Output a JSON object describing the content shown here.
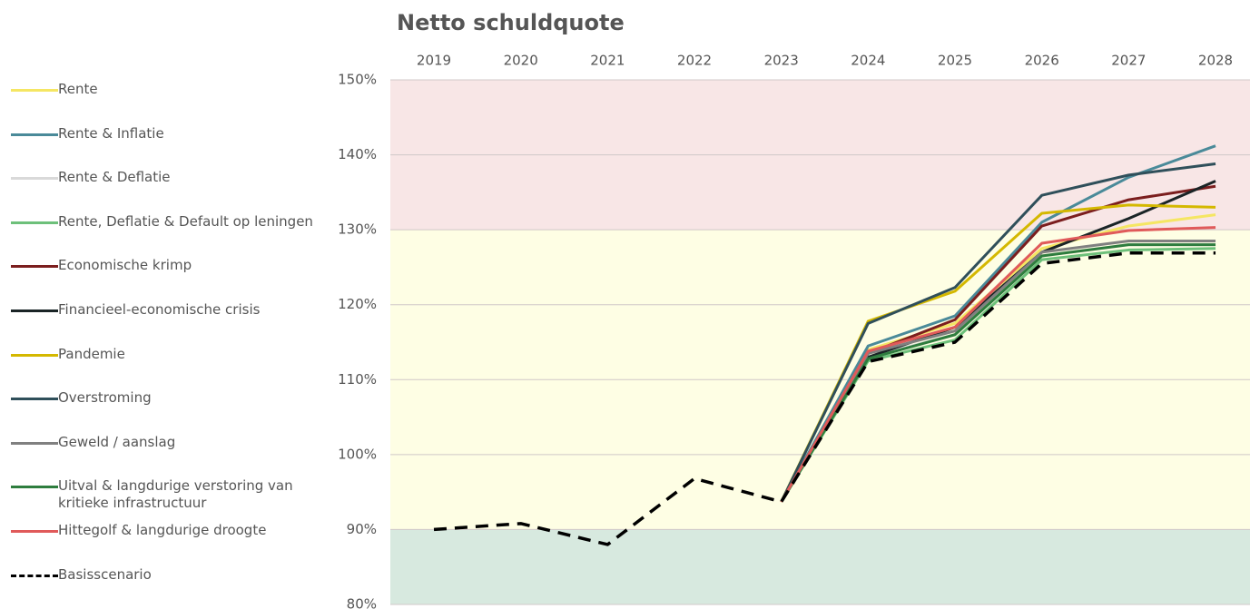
{
  "chart_data": {
    "type": "line",
    "title": "Netto schuldquote",
    "categories": [
      "2019",
      "2020",
      "2021",
      "2022",
      "2023",
      "2024",
      "2025",
      "2026",
      "2027",
      "2028"
    ],
    "ylim": [
      80,
      150
    ],
    "yticks": [
      {
        "value": 80,
        "label": "80%"
      },
      {
        "value": 90,
        "label": "90%"
      },
      {
        "value": 100,
        "label": "100%"
      },
      {
        "value": 110,
        "label": "110%"
      },
      {
        "value": 120,
        "label": "120%"
      },
      {
        "value": 130,
        "label": "130%"
      },
      {
        "value": 140,
        "label": "140%"
      },
      {
        "value": 150,
        "label": "150%"
      }
    ],
    "grid": true,
    "bands": [
      {
        "from": 80,
        "to": 90,
        "color": "#d7e9df"
      },
      {
        "from": 90,
        "to": 130,
        "color": "#fefee4"
      },
      {
        "from": 130,
        "to": 150,
        "color": "#f8e6e6"
      }
    ],
    "legend": "left",
    "series": [
      {
        "name": "Rente",
        "color": "#f5e663",
        "values": [
          null,
          null,
          null,
          null,
          93.7,
          114,
          117.5,
          127.5,
          130.5,
          132
        ]
      },
      {
        "name": "Rente & Inflatie",
        "color": "#4a8a99",
        "values": [
          null,
          null,
          null,
          null,
          93.7,
          114.5,
          118.5,
          131,
          137,
          141.2
        ]
      },
      {
        "name": "Rente & Deflatie",
        "color": "#d9d9d9",
        "values": [
          null,
          null,
          null,
          null,
          93.7,
          113,
          116,
          126.5,
          128,
          128
        ]
      },
      {
        "name": "Rente, Deflatie & Default op leningen",
        "color": "#6dc07a",
        "values": [
          null,
          null,
          null,
          null,
          93.7,
          112.5,
          115.3,
          126,
          127.3,
          127.5
        ]
      },
      {
        "name": "Economische krimp",
        "color": "#7b1e1e",
        "values": [
          null,
          null,
          null,
          null,
          93.7,
          113.5,
          118,
          130.5,
          134,
          135.8
        ]
      },
      {
        "name": "Financieel-economische crisis",
        "color": "#1a2426",
        "values": [
          null,
          null,
          null,
          null,
          93.7,
          113,
          117,
          127,
          131.5,
          136.5
        ]
      },
      {
        "name": "Pandemie",
        "color": "#d4b800",
        "values": [
          null,
          null,
          null,
          null,
          93.7,
          117.8,
          121.8,
          132.2,
          133.3,
          133
        ]
      },
      {
        "name": "Overstroming",
        "color": "#2f4f5a",
        "values": [
          null,
          null,
          null,
          null,
          93.7,
          117.5,
          122.3,
          134.6,
          137.3,
          138.8
        ]
      },
      {
        "name": "Geweld / aanslag",
        "color": "#808080",
        "values": [
          null,
          null,
          null,
          null,
          93.7,
          113.5,
          116.5,
          127,
          128.5,
          128.5
        ]
      },
      {
        "name": "Uitval & langdurige verstoring van kritieke infrastructuur",
        "color": "#2e7d3e",
        "values": [
          null,
          null,
          null,
          null,
          93.7,
          112.8,
          116,
          126.5,
          128,
          128
        ]
      },
      {
        "name": "Hittegolf & langdurige droogte",
        "color": "#e05a5a",
        "values": [
          null,
          null,
          null,
          null,
          93.7,
          113.8,
          117,
          128.2,
          129.9,
          130.3
        ]
      },
      {
        "name": "Basisscenario",
        "color": "#000000",
        "dash": true,
        "values": [
          90,
          90.8,
          88,
          96.8,
          93.7,
          112.4,
          115,
          125.5,
          126.9,
          126.9
        ]
      }
    ]
  }
}
